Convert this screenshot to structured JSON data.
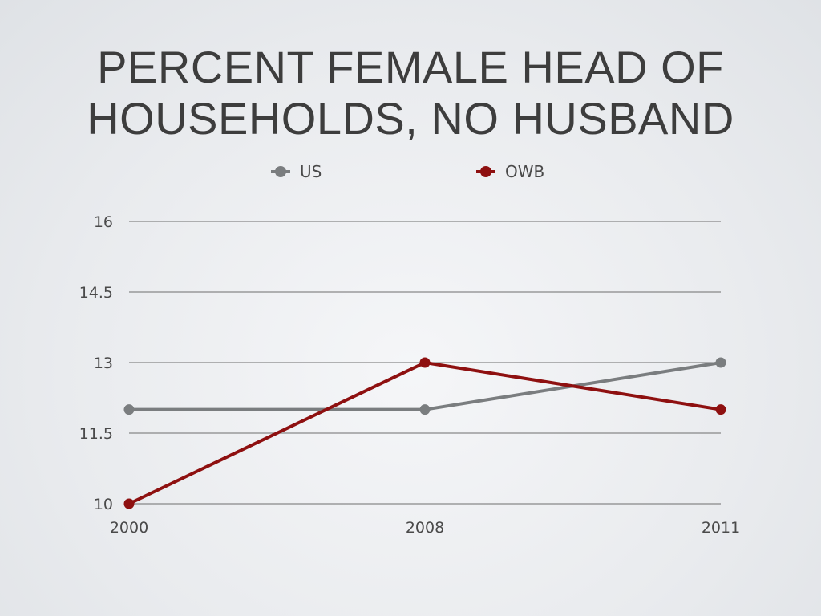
{
  "title_lines": [
    "PERCENT FEMALE HEAD OF",
    "HOUSEHOLDS, NO HUSBAND"
  ],
  "chart_data": {
    "type": "line",
    "title": "PERCENT FEMALE HEAD OF HOUSEHOLDS, NO HUSBAND",
    "x": [
      "2000",
      "2008",
      "2011"
    ],
    "series": [
      {
        "name": "US",
        "values": [
          12,
          12,
          13
        ],
        "color": "#7a7d7f"
      },
      {
        "name": "OWB",
        "values": [
          10,
          13,
          12
        ],
        "color": "#8e1010"
      }
    ],
    "ylim": [
      10,
      16
    ],
    "yticks": [
      "10",
      "11.5",
      "13",
      "14.5",
      "16"
    ],
    "xlabel": "",
    "ylabel": "",
    "grid": true,
    "legend_position": "top"
  }
}
